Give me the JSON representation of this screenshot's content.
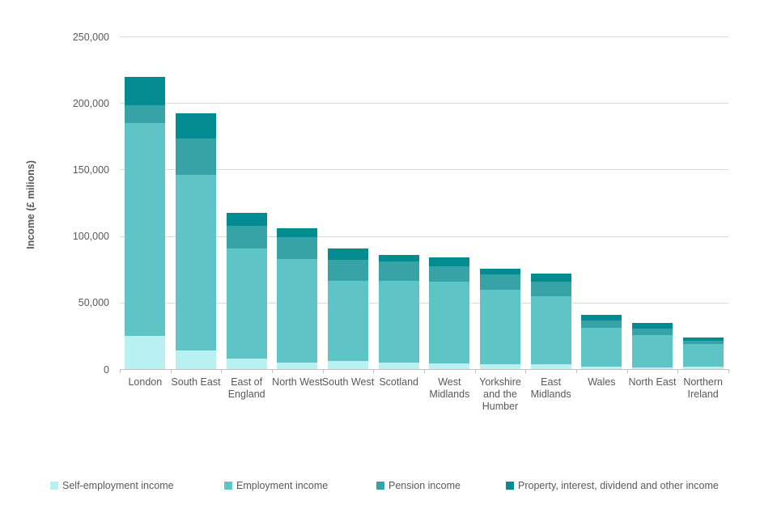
{
  "chart_data": {
    "type": "bar",
    "stacked": true,
    "title": "",
    "ylabel": "Income (£ milions)",
    "xlabel": "",
    "ylim": [
      0,
      250000
    ],
    "ytick_interval": 50000,
    "ytick_labels": [
      "0",
      "50,000",
      "100,000",
      "150,000",
      "200,000",
      "250,000"
    ],
    "grid": true,
    "legend_position": "bottom",
    "categories": [
      "London",
      "South East",
      "East of England",
      "North West",
      "South West",
      "Scotland",
      "West Midlands",
      "Yorkshire and the Humber",
      "East Midlands",
      "Wales",
      "North East",
      "Northern Ireland"
    ],
    "series": [
      {
        "name": "Self-employment income",
        "color": "#b9f0f2",
        "values": [
          25000,
          14000,
          8000,
          5000,
          6000,
          5000,
          4000,
          3500,
          3500,
          2000,
          1500,
          2000
        ]
      },
      {
        "name": "Employment income",
        "color": "#5fc4c6",
        "values": [
          160000,
          132000,
          82500,
          78000,
          60500,
          61500,
          61500,
          56000,
          51000,
          29000,
          24000,
          17000
        ]
      },
      {
        "name": "Pension income",
        "color": "#38a3a6",
        "values": [
          13500,
          27500,
          17000,
          16000,
          15500,
          14500,
          12000,
          11500,
          11000,
          5500,
          5000,
          2500
        ]
      },
      {
        "name": "Property, interest, dividend and other income",
        "color": "#028b91",
        "values": [
          21000,
          18500,
          10000,
          7000,
          8500,
          5000,
          6500,
          4500,
          6000,
          4000,
          4000,
          2500
        ]
      }
    ],
    "bar_totals": [
      219500,
      192000,
      117500,
      106000,
      90500,
      86000,
      84000,
      75500,
      71500,
      40500,
      34500,
      24000
    ]
  },
  "colors": {
    "background": "#ffffff",
    "gridline": "#d9d9d9",
    "axis_line": "#bfbfbf",
    "text": "#595959"
  }
}
